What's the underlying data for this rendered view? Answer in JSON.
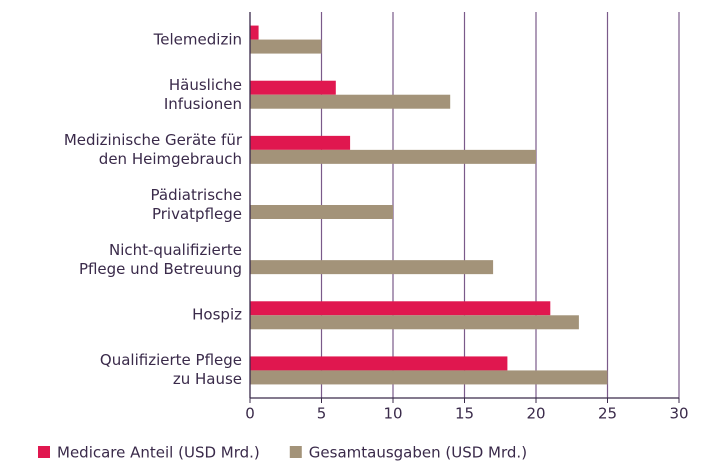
{
  "chart_data": {
    "type": "hbar",
    "categories": [
      "Telemedizin",
      "Häusliche\nInfusionen",
      "Medizinische Geräte für\nden Heimgebrauch",
      "Pädiatrische\nPrivatpflege",
      "Nicht-qualifizierte\nPflege und Betreuung",
      "Hospiz",
      "Qualifizierte Pflege\nzu Hause"
    ],
    "series": [
      {
        "name": "Medicare Anteil (USD Mrd.)",
        "color": "#e0174f",
        "values": [
          0.6,
          6,
          7,
          0,
          0,
          21,
          18
        ]
      },
      {
        "name": "Gesamtausgaben (USD Mrd.)",
        "color": "#a39379",
        "values": [
          5,
          14,
          20,
          10,
          17,
          23,
          25
        ]
      }
    ],
    "xlim": [
      0,
      30
    ],
    "xticks": [
      0,
      5,
      10,
      15,
      20,
      25,
      30
    ],
    "grid": true,
    "legend": "bottom"
  }
}
